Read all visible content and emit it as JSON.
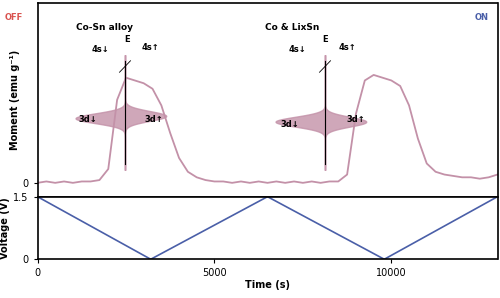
{
  "chart_data": [
    {
      "type": "line",
      "ylabel": "Moment (emu g⁻¹)",
      "x": [
        0,
        250,
        500,
        750,
        1000,
        1250,
        1500,
        1750,
        2000,
        2250,
        2500,
        2750,
        3000,
        3250,
        3500,
        3750,
        4000,
        4250,
        4500,
        4750,
        5000,
        5250,
        5500,
        5750,
        6000,
        6250,
        6500,
        6750,
        7000,
        7250,
        7500,
        7750,
        8000,
        8250,
        8500,
        8750,
        9000,
        9250,
        9500,
        9750,
        10000,
        10250,
        10500,
        10750,
        11000,
        11250,
        11500,
        11750,
        12000,
        12250,
        12500,
        12750,
        13000
      ],
      "series": [
        {
          "color": "#c391a8",
          "values": [
            0,
            0.5,
            0,
            0.5,
            0,
            0.5,
            0.5,
            1,
            5,
            30,
            38,
            37,
            36,
            34,
            28,
            18,
            9,
            4,
            2,
            1,
            0.5,
            0.5,
            0,
            0.5,
            0,
            0.5,
            0,
            0.5,
            0,
            0.5,
            0,
            0.5,
            0,
            0.5,
            0.5,
            3,
            25,
            37,
            39,
            38,
            37,
            35,
            28,
            16,
            7,
            4,
            3,
            2.5,
            2,
            2,
            1.5,
            2,
            3
          ]
        }
      ],
      "xlim": [
        0,
        13000
      ],
      "xticks": [
        0,
        5000,
        10000
      ],
      "ylim": [
        -5,
        65
      ],
      "yticks": [
        0
      ],
      "tick_labels": "y",
      "annotations": [
        "OFF",
        "Co-Sn alloy",
        "4s↓",
        "4s↑",
        "E",
        "3d↓",
        "3d↑",
        "Co & LixSn",
        "ON",
        "4s↓",
        "4s↑",
        "E",
        "3d↓",
        "3d↑"
      ]
    },
    {
      "type": "line",
      "xlabel": "Time (s)",
      "ylabel": "Voltage (V)",
      "x": [
        0,
        3200,
        6500,
        9800,
        13000
      ],
      "series": [
        {
          "color": "#4a5fa8",
          "values": [
            1.5,
            0,
            1.5,
            0,
            1.5
          ]
        }
      ],
      "xlim": [
        0,
        13000
      ],
      "xticks": [
        0,
        5000,
        10000
      ],
      "ylim": [
        0,
        1.5
      ],
      "yticks": [
        0,
        1.5
      ]
    }
  ]
}
